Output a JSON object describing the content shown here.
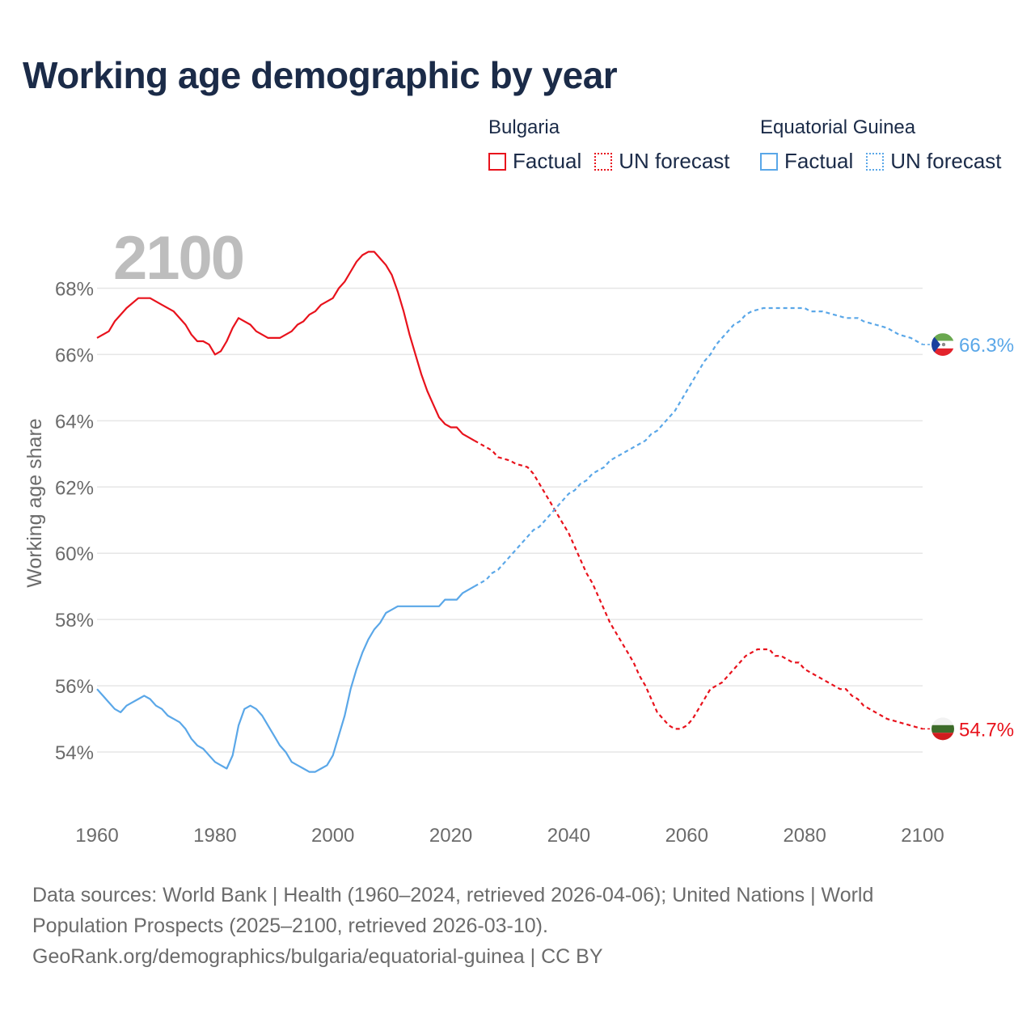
{
  "title": "Working age demographic by year",
  "year_label": "2100",
  "legend": {
    "groups": [
      {
        "country": "Bulgaria",
        "factual_label": "Factual",
        "forecast_label": "UN forecast",
        "color": "#e8121c"
      },
      {
        "country": "Equatorial Guinea",
        "factual_label": "Factual",
        "forecast_label": "UN forecast",
        "color": "#5aa7e8"
      }
    ]
  },
  "footer": {
    "line1": "Data sources: World Bank | Health (1960–2024, retrieved 2026-04-06); United Nations | World",
    "line2": "Population Prospects (2025–2100, retrieved 2026-03-10).",
    "line3": "GeoRank.org/demographics/bulgaria/equatorial-guinea | CC BY"
  },
  "chart_data": {
    "type": "line",
    "title": "Working age demographic by year",
    "xlabel": "",
    "ylabel": "Working age share",
    "xlim": [
      1960,
      2100
    ],
    "ylim": [
      52.0,
      69.5
    ],
    "x_ticks": [
      1960,
      1980,
      2000,
      2020,
      2040,
      2060,
      2080,
      2100
    ],
    "y_ticks": [
      54,
      56,
      58,
      60,
      62,
      64,
      66,
      68
    ],
    "y_tick_labels": [
      "54%",
      "56%",
      "58%",
      "60%",
      "62%",
      "64%",
      "66%",
      "68%"
    ],
    "factual_until": 2024,
    "series": [
      {
        "name": "Bulgaria",
        "color": "#e8121c",
        "end_label": "54.7%",
        "points": [
          [
            1960,
            66.5
          ],
          [
            1962,
            66.7
          ],
          [
            1963,
            67.0
          ],
          [
            1965,
            67.4
          ],
          [
            1967,
            67.7
          ],
          [
            1969,
            67.7
          ],
          [
            1971,
            67.5
          ],
          [
            1973,
            67.3
          ],
          [
            1975,
            66.9
          ],
          [
            1976,
            66.6
          ],
          [
            1977,
            66.4
          ],
          [
            1978,
            66.4
          ],
          [
            1979,
            66.3
          ],
          [
            1980,
            66.0
          ],
          [
            1981,
            66.1
          ],
          [
            1982,
            66.4
          ],
          [
            1983,
            66.8
          ],
          [
            1984,
            67.1
          ],
          [
            1985,
            67.0
          ],
          [
            1986,
            66.9
          ],
          [
            1987,
            66.7
          ],
          [
            1989,
            66.5
          ],
          [
            1991,
            66.5
          ],
          [
            1993,
            66.7
          ],
          [
            1994,
            66.9
          ],
          [
            1995,
            67.0
          ],
          [
            1996,
            67.2
          ],
          [
            1997,
            67.3
          ],
          [
            1998,
            67.5
          ],
          [
            2000,
            67.7
          ],
          [
            2001,
            68.0
          ],
          [
            2002,
            68.2
          ],
          [
            2003,
            68.5
          ],
          [
            2004,
            68.8
          ],
          [
            2005,
            69.0
          ],
          [
            2006,
            69.1
          ],
          [
            2007,
            69.1
          ],
          [
            2008,
            68.9
          ],
          [
            2009,
            68.7
          ],
          [
            2010,
            68.4
          ],
          [
            2011,
            67.9
          ],
          [
            2012,
            67.3
          ],
          [
            2013,
            66.6
          ],
          [
            2014,
            66.0
          ],
          [
            2015,
            65.4
          ],
          [
            2016,
            64.9
          ],
          [
            2017,
            64.5
          ],
          [
            2018,
            64.1
          ],
          [
            2019,
            63.9
          ],
          [
            2020,
            63.8
          ],
          [
            2021,
            63.8
          ],
          [
            2022,
            63.6
          ],
          [
            2023,
            63.5
          ],
          [
            2024,
            63.4
          ],
          [
            2025,
            63.3
          ],
          [
            2026,
            63.2
          ],
          [
            2027,
            63.1
          ],
          [
            2028,
            62.9
          ],
          [
            2030,
            62.8
          ],
          [
            2031,
            62.7
          ],
          [
            2033,
            62.6
          ],
          [
            2034,
            62.4
          ],
          [
            2035,
            62.1
          ],
          [
            2036,
            61.8
          ],
          [
            2037,
            61.5
          ],
          [
            2038,
            61.2
          ],
          [
            2039,
            60.9
          ],
          [
            2040,
            60.6
          ],
          [
            2041,
            60.2
          ],
          [
            2042,
            59.8
          ],
          [
            2043,
            59.4
          ],
          [
            2044,
            59.1
          ],
          [
            2045,
            58.7
          ],
          [
            2046,
            58.3
          ],
          [
            2047,
            57.9
          ],
          [
            2048,
            57.6
          ],
          [
            2049,
            57.3
          ],
          [
            2050,
            57.0
          ],
          [
            2051,
            56.7
          ],
          [
            2052,
            56.3
          ],
          [
            2053,
            56.0
          ],
          [
            2054,
            55.6
          ],
          [
            2055,
            55.2
          ],
          [
            2056,
            55.0
          ],
          [
            2057,
            54.8
          ],
          [
            2058,
            54.7
          ],
          [
            2059,
            54.7
          ],
          [
            2060,
            54.8
          ],
          [
            2061,
            55.0
          ],
          [
            2062,
            55.3
          ],
          [
            2063,
            55.6
          ],
          [
            2064,
            55.9
          ],
          [
            2065,
            56.0
          ],
          [
            2066,
            56.1
          ],
          [
            2067,
            56.3
          ],
          [
            2068,
            56.5
          ],
          [
            2069,
            56.7
          ],
          [
            2070,
            56.9
          ],
          [
            2071,
            57.0
          ],
          [
            2072,
            57.1
          ],
          [
            2074,
            57.1
          ],
          [
            2075,
            56.9
          ],
          [
            2076,
            56.9
          ],
          [
            2077,
            56.8
          ],
          [
            2078,
            56.7
          ],
          [
            2079,
            56.7
          ],
          [
            2080,
            56.5
          ],
          [
            2082,
            56.3
          ],
          [
            2084,
            56.1
          ],
          [
            2086,
            55.9
          ],
          [
            2087,
            55.9
          ],
          [
            2088,
            55.7
          ],
          [
            2089,
            55.6
          ],
          [
            2090,
            55.4
          ],
          [
            2092,
            55.2
          ],
          [
            2094,
            55.0
          ],
          [
            2096,
            54.9
          ],
          [
            2098,
            54.8
          ],
          [
            2100,
            54.7
          ]
        ]
      },
      {
        "name": "Equatorial Guinea",
        "color": "#5aa7e8",
        "end_label": "66.3%",
        "points": [
          [
            1960,
            55.9
          ],
          [
            1961,
            55.7
          ],
          [
            1962,
            55.5
          ],
          [
            1963,
            55.3
          ],
          [
            1964,
            55.2
          ],
          [
            1965,
            55.4
          ],
          [
            1966,
            55.5
          ],
          [
            1967,
            55.6
          ],
          [
            1968,
            55.7
          ],
          [
            1969,
            55.6
          ],
          [
            1970,
            55.4
          ],
          [
            1971,
            55.3
          ],
          [
            1972,
            55.1
          ],
          [
            1973,
            55.0
          ],
          [
            1974,
            54.9
          ],
          [
            1975,
            54.7
          ],
          [
            1976,
            54.4
          ],
          [
            1977,
            54.2
          ],
          [
            1978,
            54.1
          ],
          [
            1979,
            53.9
          ],
          [
            1980,
            53.7
          ],
          [
            1981,
            53.6
          ],
          [
            1982,
            53.5
          ],
          [
            1983,
            53.9
          ],
          [
            1984,
            54.8
          ],
          [
            1985,
            55.3
          ],
          [
            1986,
            55.4
          ],
          [
            1987,
            55.3
          ],
          [
            1988,
            55.1
          ],
          [
            1989,
            54.8
          ],
          [
            1990,
            54.5
          ],
          [
            1991,
            54.2
          ],
          [
            1992,
            54.0
          ],
          [
            1993,
            53.7
          ],
          [
            1994,
            53.6
          ],
          [
            1995,
            53.5
          ],
          [
            1996,
            53.4
          ],
          [
            1997,
            53.4
          ],
          [
            1998,
            53.5
          ],
          [
            1999,
            53.6
          ],
          [
            2000,
            53.9
          ],
          [
            2001,
            54.5
          ],
          [
            2002,
            55.1
          ],
          [
            2003,
            55.9
          ],
          [
            2004,
            56.5
          ],
          [
            2005,
            57.0
          ],
          [
            2006,
            57.4
          ],
          [
            2007,
            57.7
          ],
          [
            2008,
            57.9
          ],
          [
            2009,
            58.2
          ],
          [
            2010,
            58.3
          ],
          [
            2011,
            58.4
          ],
          [
            2013,
            58.4
          ],
          [
            2015,
            58.4
          ],
          [
            2018,
            58.4
          ],
          [
            2019,
            58.6
          ],
          [
            2021,
            58.6
          ],
          [
            2022,
            58.8
          ],
          [
            2024,
            59.0
          ],
          [
            2026,
            59.2
          ],
          [
            2027,
            59.4
          ],
          [
            2028,
            59.5
          ],
          [
            2030,
            59.9
          ],
          [
            2032,
            60.3
          ],
          [
            2034,
            60.7
          ],
          [
            2035,
            60.8
          ],
          [
            2036,
            61.0
          ],
          [
            2038,
            61.4
          ],
          [
            2040,
            61.8
          ],
          [
            2041,
            61.9
          ],
          [
            2042,
            62.1
          ],
          [
            2043,
            62.2
          ],
          [
            2044,
            62.4
          ],
          [
            2046,
            62.6
          ],
          [
            2047,
            62.8
          ],
          [
            2049,
            63.0
          ],
          [
            2051,
            63.2
          ],
          [
            2053,
            63.4
          ],
          [
            2054,
            63.6
          ],
          [
            2055,
            63.7
          ],
          [
            2056,
            63.9
          ],
          [
            2057,
            64.1
          ],
          [
            2058,
            64.3
          ],
          [
            2059,
            64.6
          ],
          [
            2060,
            64.9
          ],
          [
            2061,
            65.2
          ],
          [
            2062,
            65.5
          ],
          [
            2063,
            65.8
          ],
          [
            2064,
            66.0
          ],
          [
            2065,
            66.3
          ],
          [
            2066,
            66.5
          ],
          [
            2067,
            66.7
          ],
          [
            2068,
            66.9
          ],
          [
            2069,
            67.0
          ],
          [
            2070,
            67.2
          ],
          [
            2071,
            67.3
          ],
          [
            2073,
            67.4
          ],
          [
            2075,
            67.4
          ],
          [
            2076,
            67.4
          ],
          [
            2078,
            67.4
          ],
          [
            2080,
            67.4
          ],
          [
            2081,
            67.3
          ],
          [
            2083,
            67.3
          ],
          [
            2085,
            67.2
          ],
          [
            2087,
            67.1
          ],
          [
            2089,
            67.1
          ],
          [
            2090,
            67.0
          ],
          [
            2092,
            66.9
          ],
          [
            2094,
            66.8
          ],
          [
            2095,
            66.7
          ],
          [
            2096,
            66.6
          ],
          [
            2098,
            66.5
          ],
          [
            2099,
            66.4
          ],
          [
            2100,
            66.3
          ]
        ]
      }
    ]
  }
}
